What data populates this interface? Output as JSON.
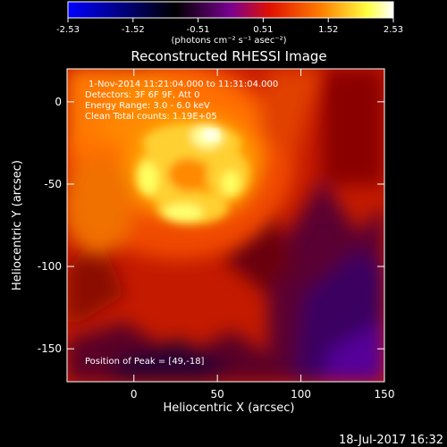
{
  "colorbar": {
    "ticks": [
      "-2.53",
      "-1.52",
      "-0.51",
      "0.51",
      "1.52",
      "2.53"
    ],
    "unit_label": "(photons cm⁻² s⁻¹ asec⁻²)",
    "colormap": [
      "#0000ff",
      "#000000",
      "#6a0080",
      "#e02000",
      "#ff8000",
      "#ffff40",
      "#ffffff"
    ]
  },
  "footer": {
    "timestamp": "18-Jul-2017 16:32"
  },
  "chart_data": {
    "type": "heatmap",
    "title": "Reconstructed RHESSI Image",
    "xlabel": "Heliocentric X (arcsec)",
    "ylabel": "Heliocentric Y (arcsec)",
    "xlim": [
      -40,
      150
    ],
    "ylim": [
      -170,
      20
    ],
    "xticks": [
      "0",
      "50",
      "100",
      "150"
    ],
    "yticks": [
      "0",
      "-50",
      "-100",
      "-150"
    ],
    "annotations": [
      "1-Nov-2014 11:21:04.000 to 11:31:04.000",
      "Detectors: 3F 6F 9F, Att 0",
      "Energy Range: 3.0 - 6.0 keV",
      "Clean     Total counts: 1.19E+05"
    ],
    "peak_label": "Position of Peak = [49,-18]",
    "peak": [
      49,
      -18
    ],
    "value_range": [
      -2.53,
      2.53
    ]
  }
}
